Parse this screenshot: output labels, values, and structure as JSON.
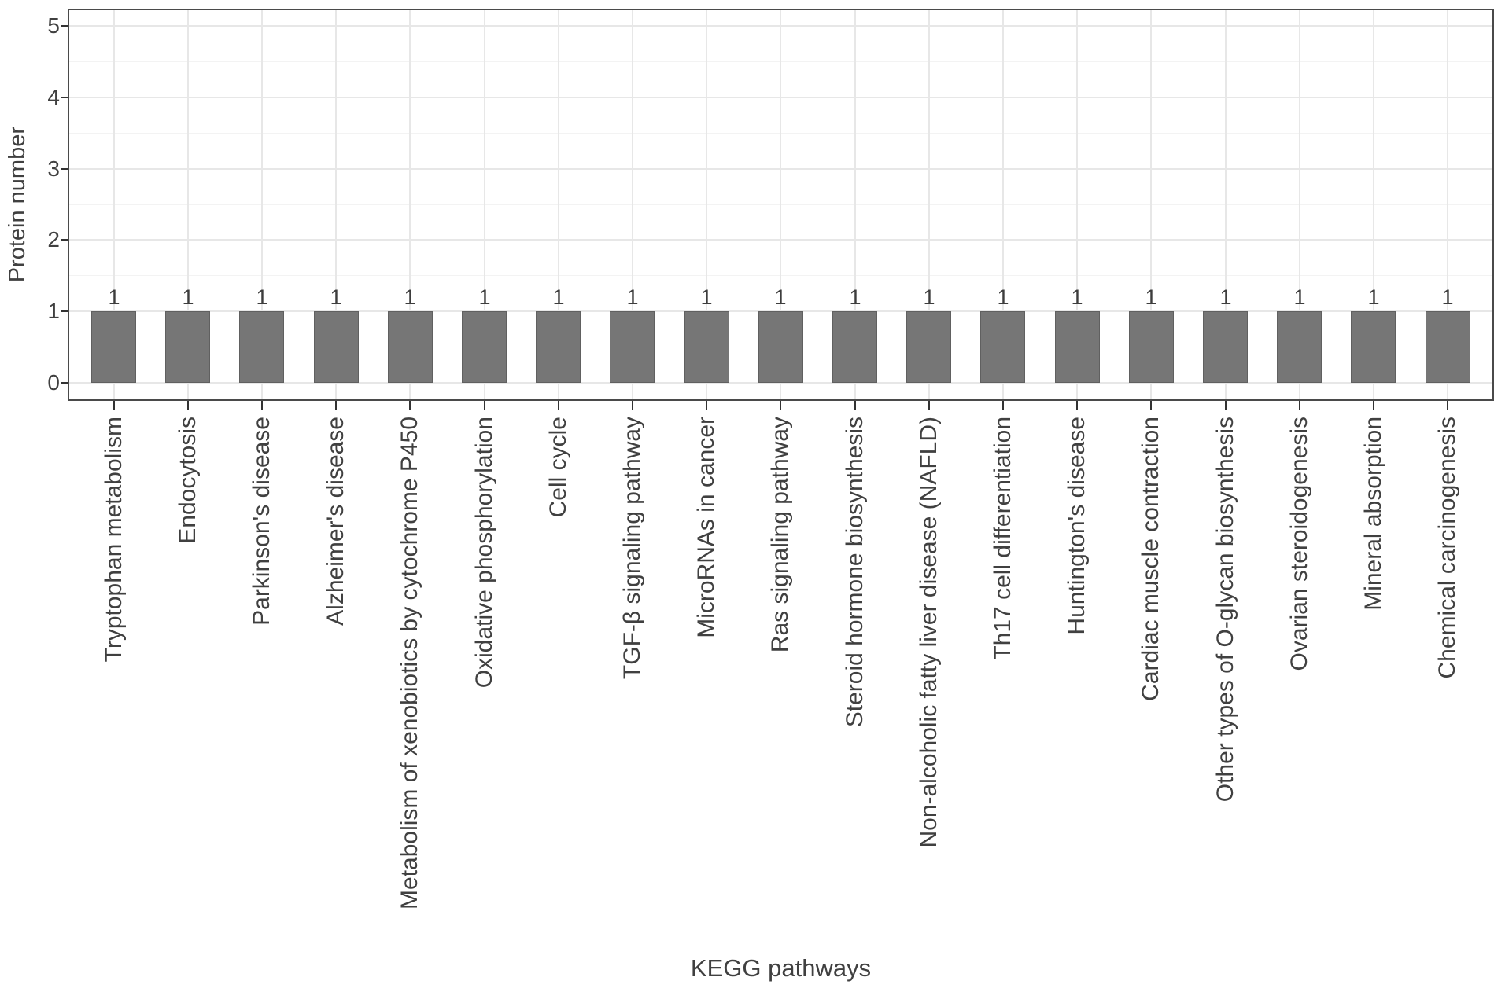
{
  "chart_data": {
    "type": "bar",
    "title": "",
    "xlabel": "KEGG pathways",
    "ylabel": "Protein number",
    "categories": [
      "Tryptophan metabolism",
      "Endocytosis",
      "Parkinson's disease",
      "Alzheimer's disease",
      "Metabolism of xenobiotics by cytochrome P450",
      "Oxidative phosphorylation",
      "Cell cycle",
      "TGF-β signaling pathway",
      "MicroRNAs in cancer",
      "Ras signaling pathway",
      "Steroid hormone biosynthesis",
      "Non-alcoholic fatty liver disease (NAFLD)",
      "Th17 cell differentiation",
      "Huntington's disease",
      "Cardiac muscle contraction",
      "Other types of O-glycan biosynthesis",
      "Ovarian steroidogenesis",
      "Mineral absorption",
      "Chemical carcinogenesis"
    ],
    "values": [
      1,
      1,
      1,
      1,
      1,
      1,
      1,
      1,
      1,
      1,
      1,
      1,
      1,
      1,
      1,
      1,
      1,
      1,
      1
    ],
    "bar_labels_shown": true,
    "yticks": [
      0,
      1,
      2,
      3,
      4,
      5
    ],
    "ylim": [
      0,
      5.25
    ],
    "legend": "none",
    "grid": {
      "major_horizontal": true,
      "minor_horizontal": true,
      "major_vertical_at_categories": true
    },
    "colors": {
      "bar_fill": "#767676",
      "bar_border": "#606060",
      "panel_border": "#4a4a4a",
      "axis_text": "#404040",
      "tick_mark": "#333333",
      "grid_major": "#e7e7e7",
      "grid_minor": "#f3f3f3",
      "background": "#ffffff"
    }
  }
}
